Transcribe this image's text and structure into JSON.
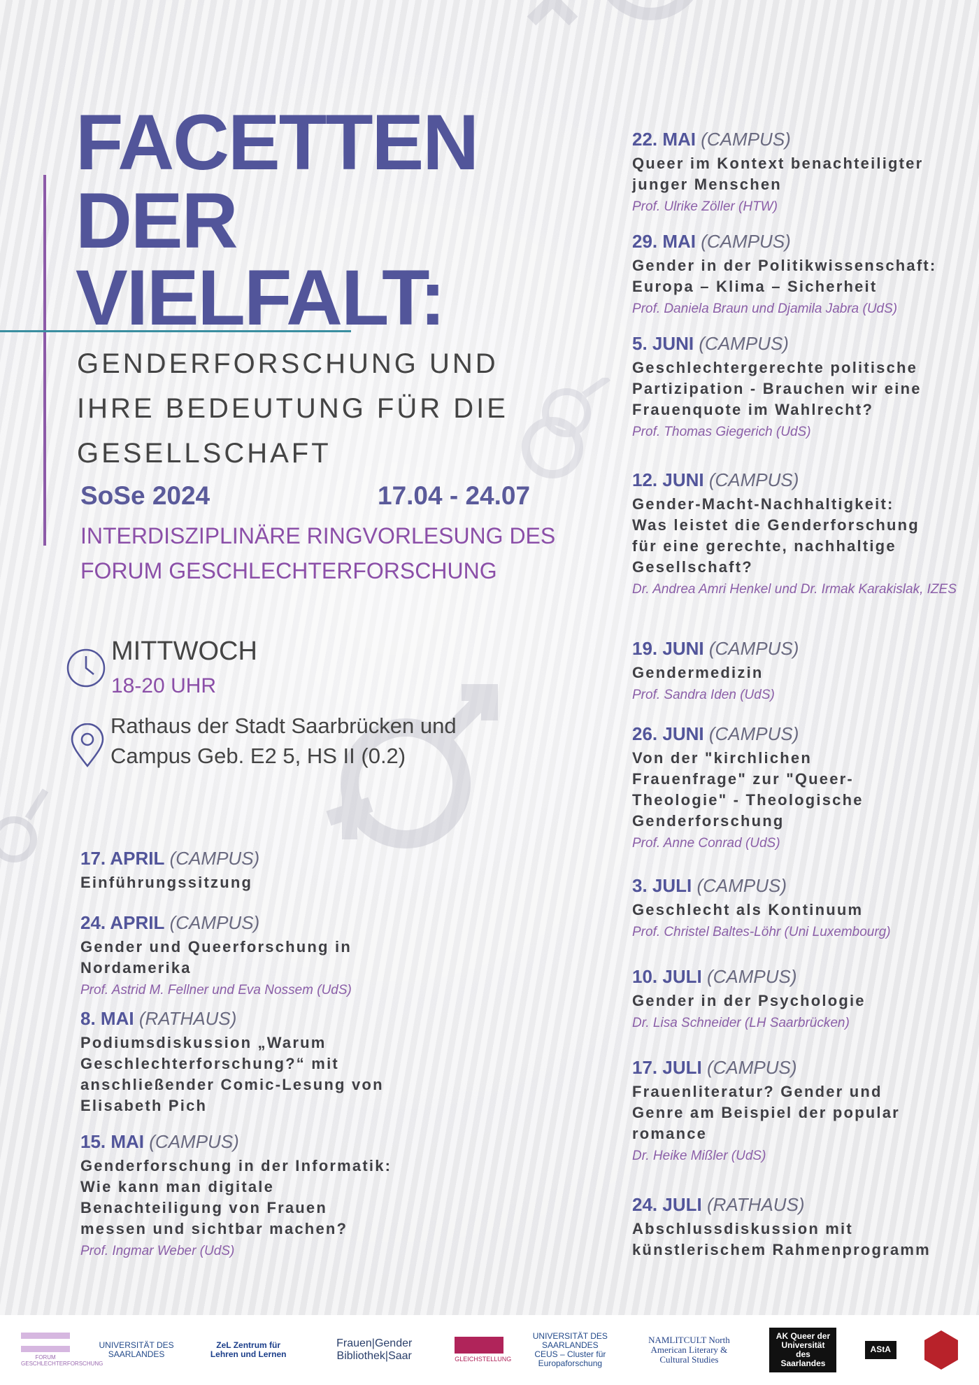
{
  "header": {
    "title_lines": [
      "FACETTEN",
      "DER",
      "VIELFALT:"
    ],
    "subtitle_lines": [
      "GENDERFORSCHUNG UND",
      "IHRE BEDEUTUNG FÜR DIE",
      "GESELLSCHAFT"
    ],
    "semester": "SoSe 2024",
    "date_range": "17.04 - 24.07",
    "series_lines": [
      "INTERDISZIPLINÄRE RINGVORLESUNG DES",
      "FORUM GESCHLECHTERFORSCHUNG"
    ]
  },
  "info": {
    "day": "MITTWOCH",
    "time": "18-20 UHR",
    "location_lines": [
      "Rathaus der Stadt Saarbrücken und",
      "Campus Geb. E2 5, HS II (0.2)"
    ],
    "clock_icon": "clock-icon",
    "pin_icon": "map-pin-icon"
  },
  "colors": {
    "title": "#52559a",
    "accent": "#8b4fa8",
    "teal": "#3a8ea0",
    "text": "#3f3f44"
  },
  "left_events": [
    {
      "date": "17. APRIL",
      "place": "(CAMPUS)",
      "title": [
        "Einführungssitzung"
      ],
      "speaker": ""
    },
    {
      "date": "24. APRIL",
      "place": "(CAMPUS)",
      "title": [
        "Gender und Queerforschung in",
        "Nordamerika"
      ],
      "speaker": "Prof. Astrid M. Fellner und Eva Nossem (UdS)"
    },
    {
      "date": "8. MAI",
      "place": "(RATHAUS)",
      "title": [
        "Podiumsdiskussion „Warum",
        "Geschlechterforschung?“ mit",
        "anschließender Comic-Lesung von",
        "Elisabeth Pich"
      ],
      "speaker": ""
    },
    {
      "date": "15. MAI",
      "place": "(CAMPUS)",
      "title": [
        "Genderforschung in der Informatik:",
        "Wie kann man digitale",
        "Benachteiligung von Frauen",
        "messen und sichtbar machen?"
      ],
      "speaker": "Prof. Ingmar Weber (UdS)"
    }
  ],
  "right_events": [
    {
      "date": "22. MAI",
      "place": "(CAMPUS)",
      "title": [
        "Queer im Kontext benachteiligter",
        "junger Menschen"
      ],
      "speaker": "Prof. Ulrike Zöller (HTW)"
    },
    {
      "date": "29. MAI",
      "place": "(CAMPUS)",
      "title": [
        "Gender in der Politikwissenschaft:",
        "Europa – Klima – Sicherheit"
      ],
      "speaker": "Prof. Daniela Braun und Djamila Jabra (UdS)"
    },
    {
      "date": "5. JUNI",
      "place": "(CAMPUS)",
      "title": [
        "Geschlechtergerechte politische",
        "Partizipation - Brauchen wir eine",
        "Frauenquote im Wahlrecht?"
      ],
      "speaker": "Prof. Thomas Giegerich (UdS)"
    },
    {
      "date": "12. JUNI",
      "place": "(CAMPUS)",
      "title": [
        "Gender-Macht-Nachhaltigkeit:",
        "Was leistet die Genderforschung",
        "für eine gerechte, nachhaltige",
        "Gesellschaft?"
      ],
      "speaker": "Dr. Andrea Amri Henkel und Dr. Irmak Karakislak, IZES"
    },
    {
      "date": "19. JUNI",
      "place": "(CAMPUS)",
      "title": [
        "Gendermedizin"
      ],
      "speaker": "Prof. Sandra Iden (UdS)"
    },
    {
      "date": "26. JUNI",
      "place": "(CAMPUS)",
      "title": [
        "Von der \"kirchlichen",
        "Frauenfrage\" zur \"Queer-",
        "Theologie\" - Theologische",
        "Genderforschung"
      ],
      "speaker": "Prof. Anne Conrad (UdS)"
    },
    {
      "date": "3. JULI",
      "place": "(CAMPUS)",
      "title": [
        "Geschlecht als Kontinuum"
      ],
      "speaker": "Prof. Christel Baltes-Löhr (Uni Luxembourg)"
    },
    {
      "date": "10. JULI",
      "place": "(CAMPUS)",
      "title": [
        "Gender in der Psychologie"
      ],
      "speaker": "Dr. Lisa Schneider  (LH Saarbrücken)"
    },
    {
      "date": "17. JULI",
      "place": "(CAMPUS)",
      "title": [
        "Frauenliteratur? Gender und",
        "Genre am Beispiel der popular",
        "romance"
      ],
      "speaker": "Dr. Heike Mißler (UdS)"
    },
    {
      "date": "24. JULI",
      "place": "(RATHAUS)",
      "title": [
        "Abschlussdiskussion mit",
        "künstlerischem Rahmenprogramm"
      ],
      "speaker": ""
    }
  ],
  "logos": [
    {
      "name": "forum-geschlechterforschung-logo",
      "text": "FORUM GESCHLECHTERFORSCHUNG"
    },
    {
      "name": "universitaet-des-saarlandes-logo",
      "text": "UNIVERSITÄT DES SAARLANDES"
    },
    {
      "name": "zel-logo",
      "text": "ZeL Zentrum für Lehren und Lernen"
    },
    {
      "name": "frauen-gender-bibliothek-logo",
      "text": "Frauen|Gender Bibliothek|Saar"
    },
    {
      "name": "gleichstellung-logo",
      "text": "GLEICHSTELLUNG"
    },
    {
      "name": "ceus-logo",
      "text": "UNIVERSITÄT DES SAARLANDES CEUS – Cluster für Europaforschung"
    },
    {
      "name": "namlitcult-logo",
      "text": "NAMLITCULT North American Literary & Cultural Studies"
    },
    {
      "name": "ak-queer-logo",
      "text": "AK Queer der Universität des Saarlandes"
    },
    {
      "name": "asta-logo",
      "text": "AStA"
    },
    {
      "name": "red-badge-logo",
      "text": ""
    }
  ]
}
